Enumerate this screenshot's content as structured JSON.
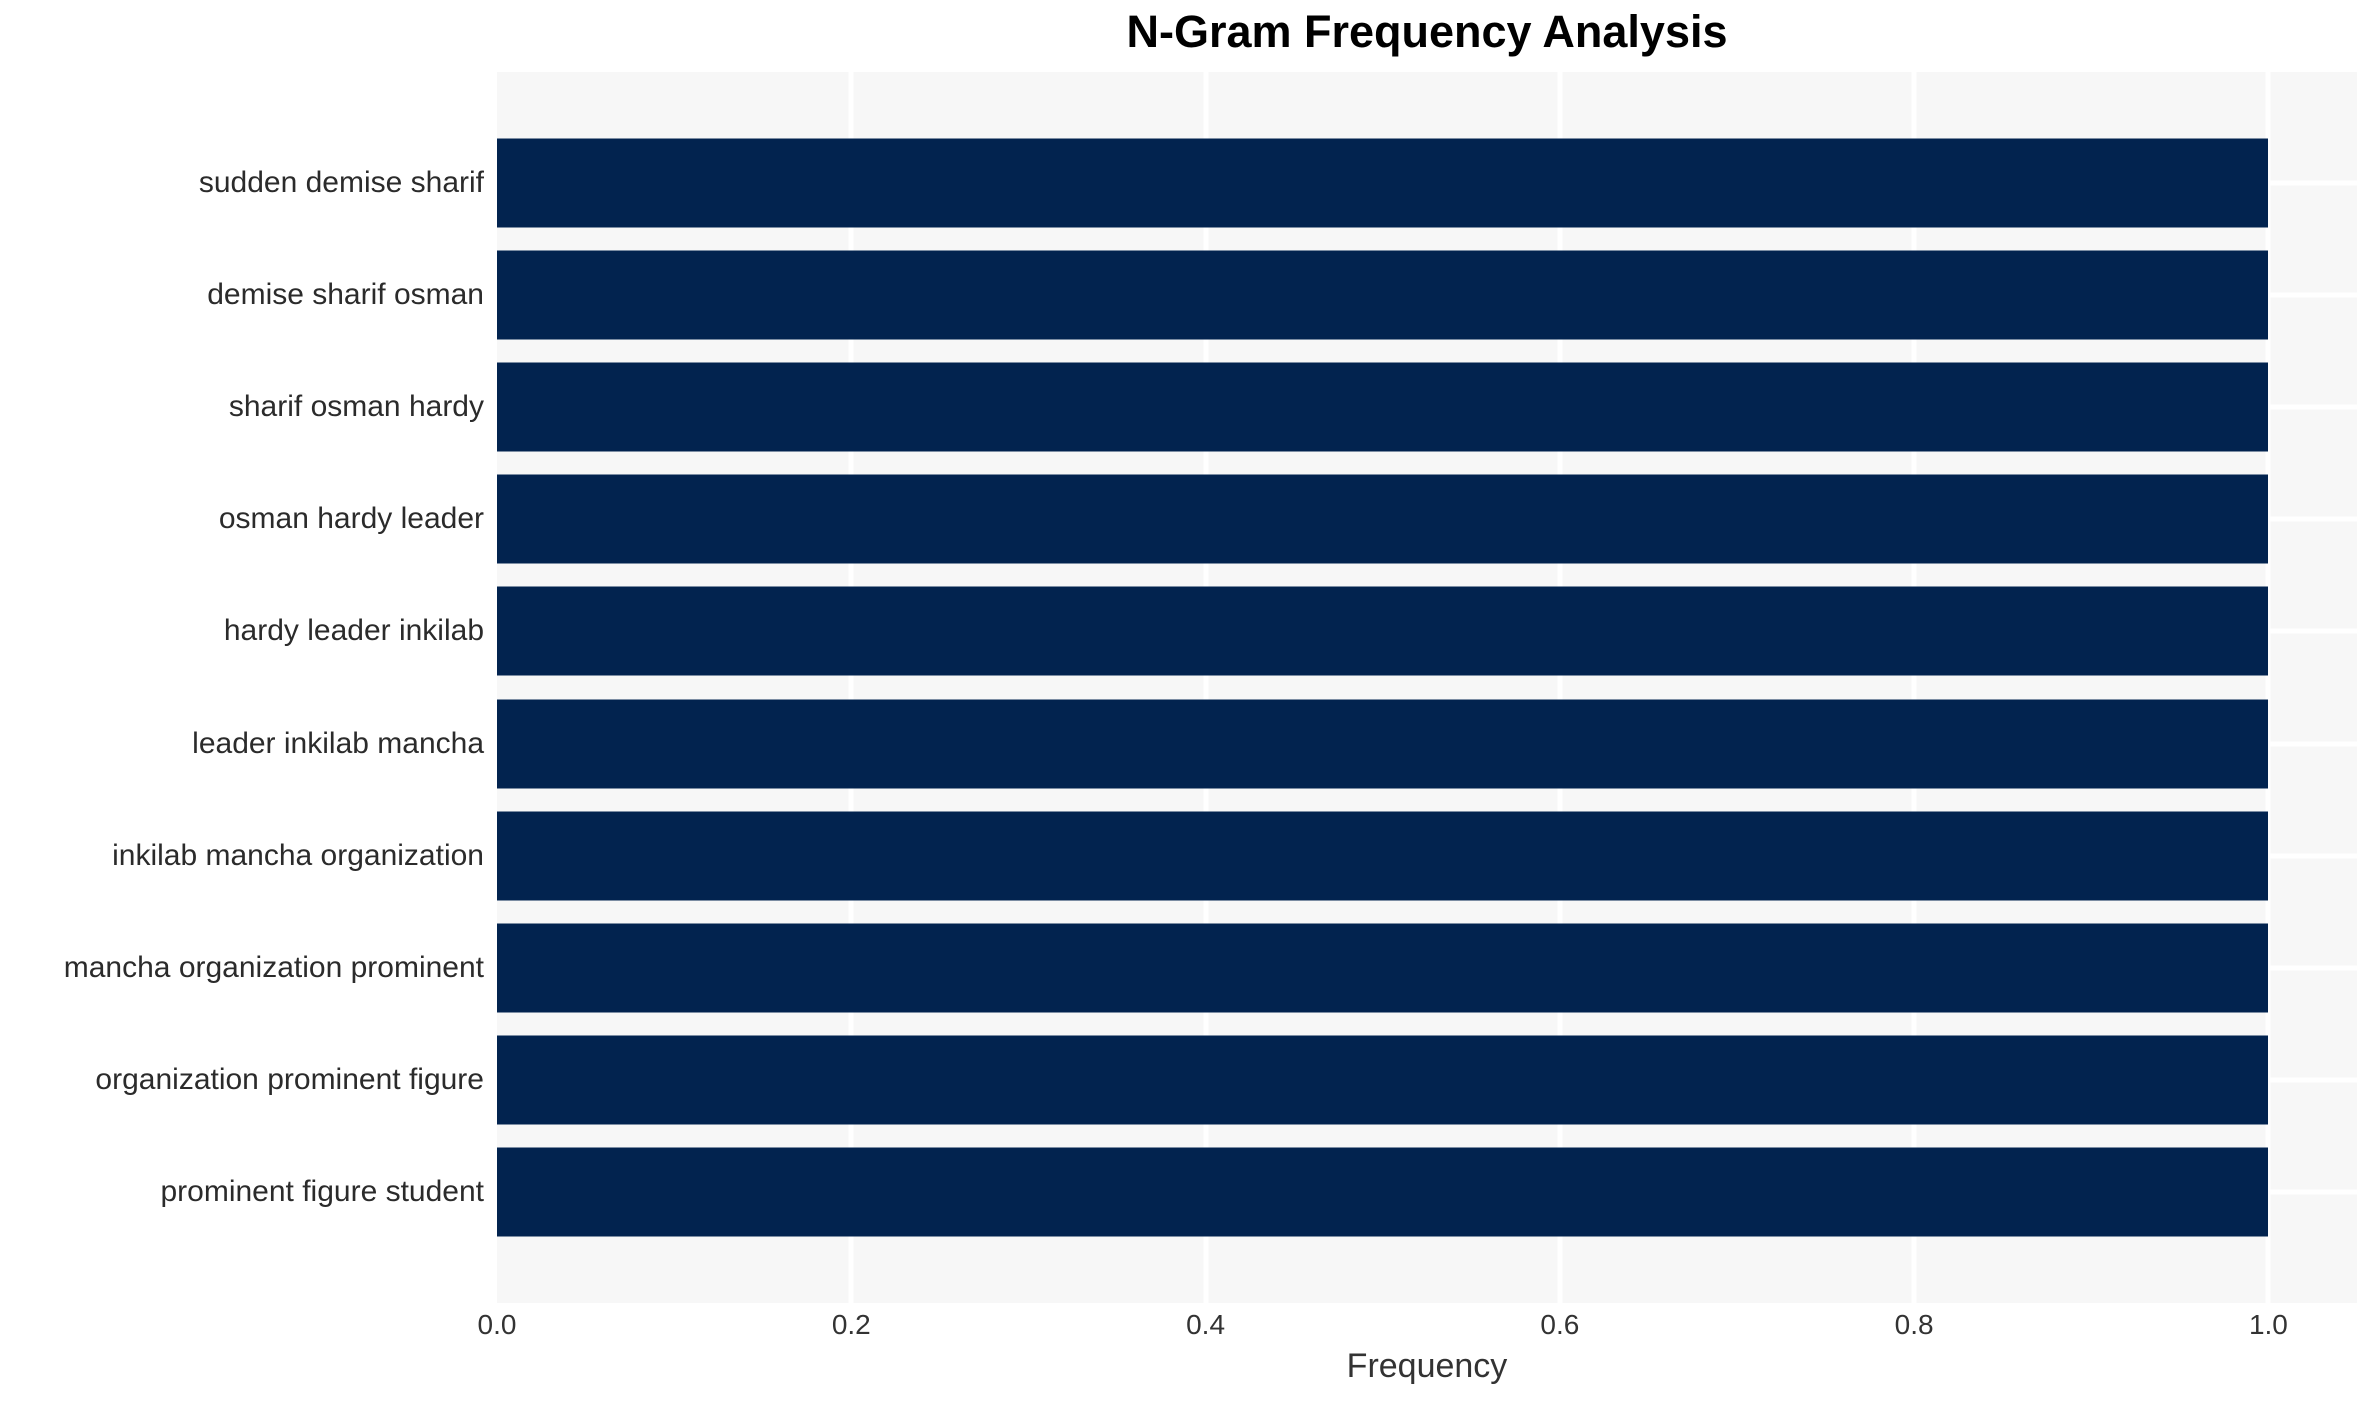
{
  "chart_data": {
    "type": "bar",
    "orientation": "horizontal",
    "title": "N-Gram Frequency Analysis",
    "xlabel": "Frequency",
    "ylabel": "",
    "categories": [
      "sudden demise sharif",
      "demise sharif osman",
      "sharif osman hardy",
      "osman hardy leader",
      "hardy leader inkilab",
      "leader inkilab mancha",
      "inkilab mancha organization",
      "mancha organization prominent",
      "organization prominent figure",
      "prominent figure student"
    ],
    "values": [
      1.0,
      1.0,
      1.0,
      1.0,
      1.0,
      1.0,
      1.0,
      1.0,
      1.0,
      1.0
    ],
    "xlim": [
      0,
      1.05
    ],
    "xticks": [
      0.0,
      0.2,
      0.4,
      0.6,
      0.8,
      1.0
    ],
    "xtick_labels": [
      "0.0",
      "0.2",
      "0.4",
      "0.6",
      "0.8",
      "1.0"
    ],
    "grid": true,
    "legend": false,
    "colors": {
      "bar": "#02234f",
      "plot_bg": "#f7f7f7",
      "grid": "#ffffff",
      "title": "#000000",
      "tick_label": "#333333",
      "category_label": "#2b2b2b",
      "figure_bg": "#ffffff"
    }
  }
}
